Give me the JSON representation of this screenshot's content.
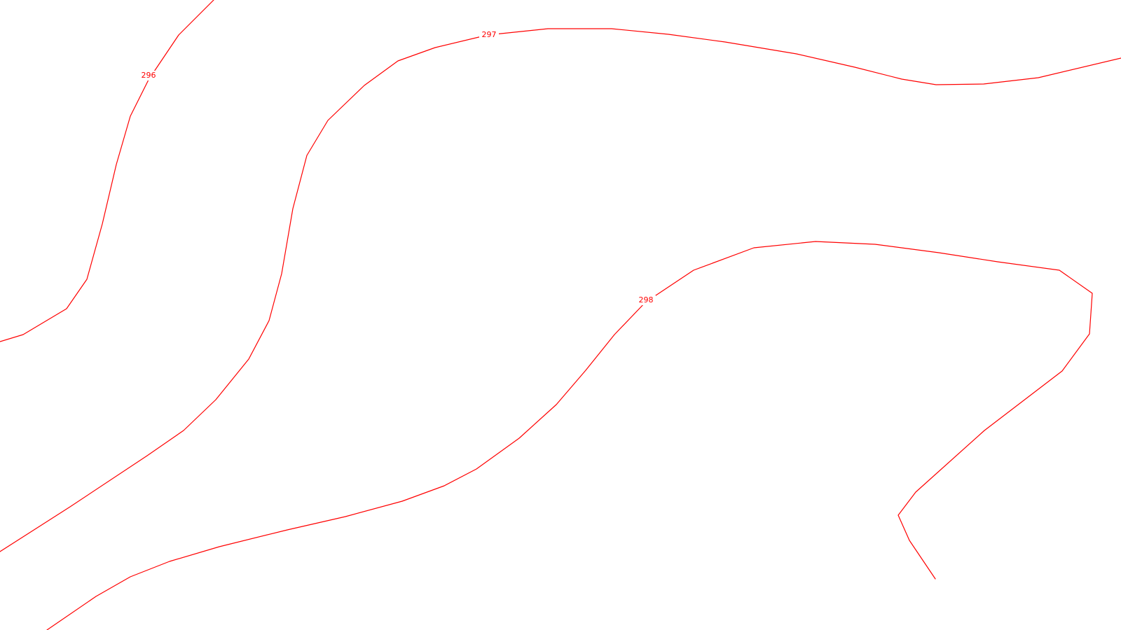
{
  "map": {
    "background_color": "#ffffff",
    "contour_color": "#ff0000",
    "contours": [
      {
        "elevation": "296"
      },
      {
        "elevation": "297"
      },
      {
        "elevation": "298"
      }
    ]
  }
}
